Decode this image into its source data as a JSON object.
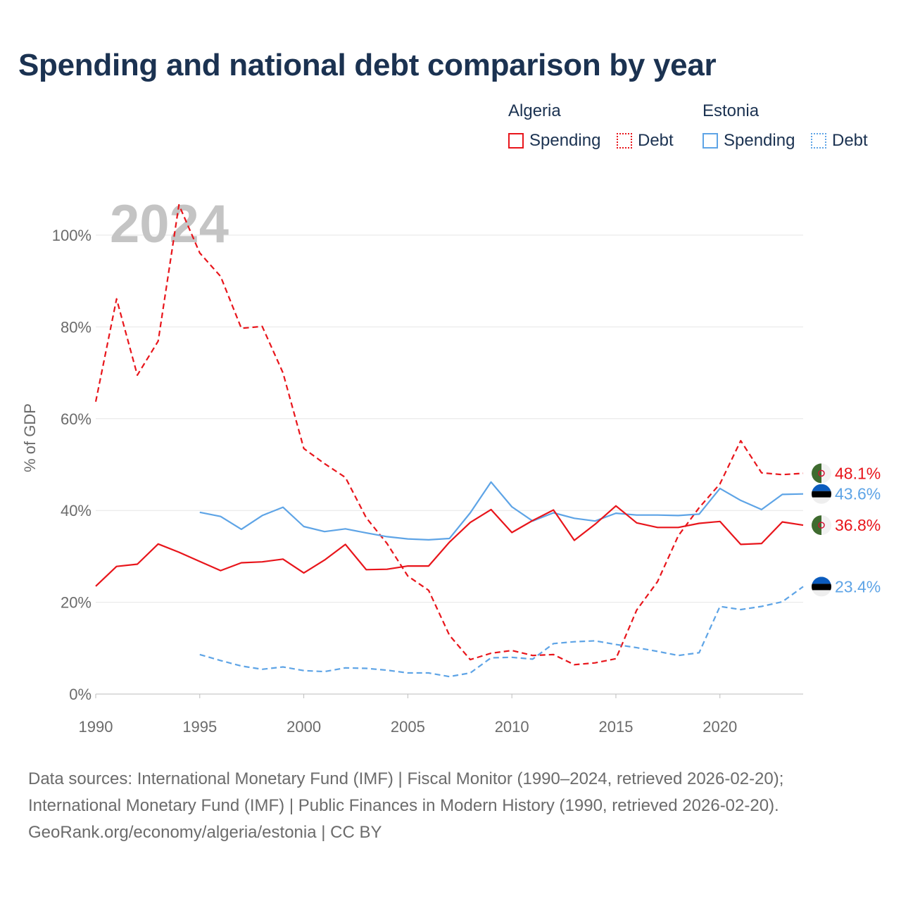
{
  "title": "Spending and national debt comparison by year",
  "legend": {
    "groups": [
      {
        "name": "Algeria",
        "items": [
          {
            "label": "Spending",
            "color": "#e8151b",
            "style": "solid"
          },
          {
            "label": "Debt",
            "color": "#e8151b",
            "style": "dotted"
          }
        ]
      },
      {
        "name": "Estonia",
        "items": [
          {
            "label": "Spending",
            "color": "#5ea4e6",
            "style": "solid"
          },
          {
            "label": "Debt",
            "color": "#5ea4e6",
            "style": "dotted"
          }
        ]
      }
    ]
  },
  "footer": {
    "line1": "Data sources: International Monetary Fund (IMF) | Fiscal Monitor (1990–2024, retrieved 2026-02-20);",
    "line2": "International Monetary Fund (IMF) | Public Finances in Modern History (1990, retrieved 2026-02-20).",
    "line3": "GeoRank.org/economy/algeria/estonia | CC BY"
  },
  "chart_data": {
    "type": "line",
    "title": "Spending and national debt comparison by year",
    "year_label": "2024",
    "ylabel": "% of GDP",
    "xlabel": "",
    "xlim": [
      1990,
      2024
    ],
    "ylim": [
      0,
      100
    ],
    "y_ticks": [
      0,
      20,
      40,
      60,
      80,
      100
    ],
    "y_tick_labels": [
      "0%",
      "20%",
      "40%",
      "60%",
      "80%",
      "100%"
    ],
    "x_ticks": [
      1990,
      1995,
      2000,
      2005,
      2010,
      2015,
      2020
    ],
    "x_tick_labels": [
      "1990",
      "1995",
      "2000",
      "2005",
      "2010",
      "2015",
      "2020"
    ],
    "grid": true,
    "series": [
      {
        "name": "Algeria Debt",
        "country": "Algeria",
        "metric": "Debt",
        "color": "#e8151b",
        "dash": "dashed",
        "x": [
          1990,
          1991,
          1992,
          1993,
          1994,
          1995,
          1996,
          1997,
          1998,
          1999,
          2000,
          2001,
          2002,
          2003,
          2004,
          2005,
          2006,
          2007,
          2008,
          2009,
          2010,
          2011,
          2012,
          2013,
          2014,
          2015,
          2016,
          2017,
          2018,
          2019,
          2020,
          2021,
          2022,
          2023,
          2024
        ],
        "values": [
          63.7,
          86.1,
          69.5,
          76.9,
          106.6,
          96.1,
          91.0,
          79.7,
          80.1,
          70.0,
          53.5,
          50.2,
          47.2,
          38.4,
          32.8,
          25.7,
          22.6,
          12.8,
          7.5,
          8.9,
          9.5,
          8.4,
          8.6,
          6.4,
          6.8,
          7.7,
          18.3,
          24.5,
          34.5,
          40.6,
          45.8,
          55.2,
          48.2,
          47.8,
          48.1
        ],
        "end_label": "48.1%"
      },
      {
        "name": "Estonia Spending",
        "country": "Estonia",
        "metric": "Spending",
        "color": "#5ea4e6",
        "dash": "solid",
        "x": [
          1995,
          1996,
          1997,
          1998,
          1999,
          2000,
          2001,
          2002,
          2003,
          2004,
          2005,
          2006,
          2007,
          2008,
          2009,
          2010,
          2011,
          2012,
          2013,
          2014,
          2015,
          2016,
          2017,
          2018,
          2019,
          2020,
          2021,
          2022,
          2023,
          2024
        ],
        "values": [
          39.6,
          38.7,
          35.9,
          38.9,
          40.7,
          36.5,
          35.4,
          36.0,
          35.1,
          34.3,
          33.8,
          33.6,
          33.9,
          39.5,
          46.2,
          40.8,
          37.7,
          39.5,
          38.3,
          37.7,
          39.4,
          39.0,
          39.0,
          38.9,
          39.2,
          44.8,
          42.2,
          40.2,
          43.5,
          43.6
        ],
        "end_label": "43.6%"
      },
      {
        "name": "Algeria Spending",
        "country": "Algeria",
        "metric": "Spending",
        "color": "#e8151b",
        "dash": "solid",
        "x": [
          1990,
          1991,
          1992,
          1993,
          1994,
          1995,
          1996,
          1997,
          1998,
          1999,
          2000,
          2001,
          2002,
          2003,
          2004,
          2005,
          2006,
          2007,
          2008,
          2009,
          2010,
          2011,
          2012,
          2013,
          2014,
          2015,
          2016,
          2017,
          2018,
          2019,
          2020,
          2021,
          2022,
          2023,
          2024
        ],
        "values": [
          23.5,
          27.8,
          28.3,
          32.7,
          30.9,
          28.9,
          26.9,
          28.6,
          28.8,
          29.4,
          26.4,
          29.2,
          32.6,
          27.1,
          27.2,
          27.9,
          27.9,
          33.1,
          37.4,
          40.2,
          35.2,
          37.8,
          40.1,
          33.5,
          37.0,
          41.0,
          37.3,
          36.3,
          36.3,
          37.2,
          37.6,
          32.6,
          32.8,
          37.5,
          36.8
        ],
        "end_label": "36.8%"
      },
      {
        "name": "Estonia Debt",
        "country": "Estonia",
        "metric": "Debt",
        "color": "#5ea4e6",
        "dash": "dashed",
        "x": [
          1995,
          1996,
          1997,
          1998,
          1999,
          2000,
          2001,
          2002,
          2003,
          2004,
          2005,
          2006,
          2007,
          2008,
          2009,
          2010,
          2011,
          2012,
          2013,
          2014,
          2015,
          2016,
          2017,
          2018,
          2019,
          2020,
          2021,
          2022,
          2023,
          2024
        ],
        "values": [
          8.6,
          7.3,
          6.1,
          5.4,
          5.9,
          5.1,
          4.9,
          5.7,
          5.6,
          5.2,
          4.6,
          4.6,
          3.8,
          4.6,
          7.9,
          8.0,
          7.6,
          11.0,
          11.4,
          11.6,
          10.8,
          10.1,
          9.3,
          8.4,
          9.0,
          19.1,
          18.4,
          19.1,
          20.1,
          23.4
        ],
        "end_label": "23.4%"
      }
    ]
  }
}
